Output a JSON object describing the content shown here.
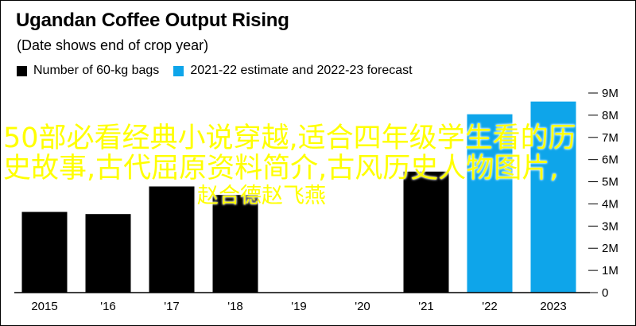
{
  "chart_data": {
    "type": "bar",
    "title": "Ugandan Coffee Output Rising",
    "subtitle": "(Date shows end of crop year)",
    "categories": [
      "2015",
      "'16",
      "'17",
      "'18",
      "'19",
      "'20",
      "'21",
      "'22",
      "2023"
    ],
    "series": [
      {
        "name": "Number of 60-kg bags",
        "values": [
          3.8,
          3.7,
          5.0,
          4.6,
          null,
          null,
          5.7,
          null,
          null
        ],
        "color": "#000000"
      },
      {
        "name": "2021-22 estimate and 2022-23 forecast",
        "values": [
          null,
          null,
          null,
          null,
          null,
          null,
          null,
          8.4,
          9.0
        ],
        "color": "#0ea5ea"
      }
    ],
    "y_ticks": [
      "0",
      "1M",
      "2M",
      "3M",
      "4M",
      "5M",
      "6M",
      "7M",
      "8M",
      "9M"
    ],
    "ylim": [
      0,
      9.4
    ],
    "y_axis_position": "right",
    "grid": false,
    "legend_position": "top-left"
  },
  "overlay_text": {
    "line1": "50部必看经典小说穿越,适合四年级学生看的历",
    "line2": "史故事,古代屈原资料简介,古风历史人物图片,",
    "line3": "赵合德赵飞燕"
  }
}
